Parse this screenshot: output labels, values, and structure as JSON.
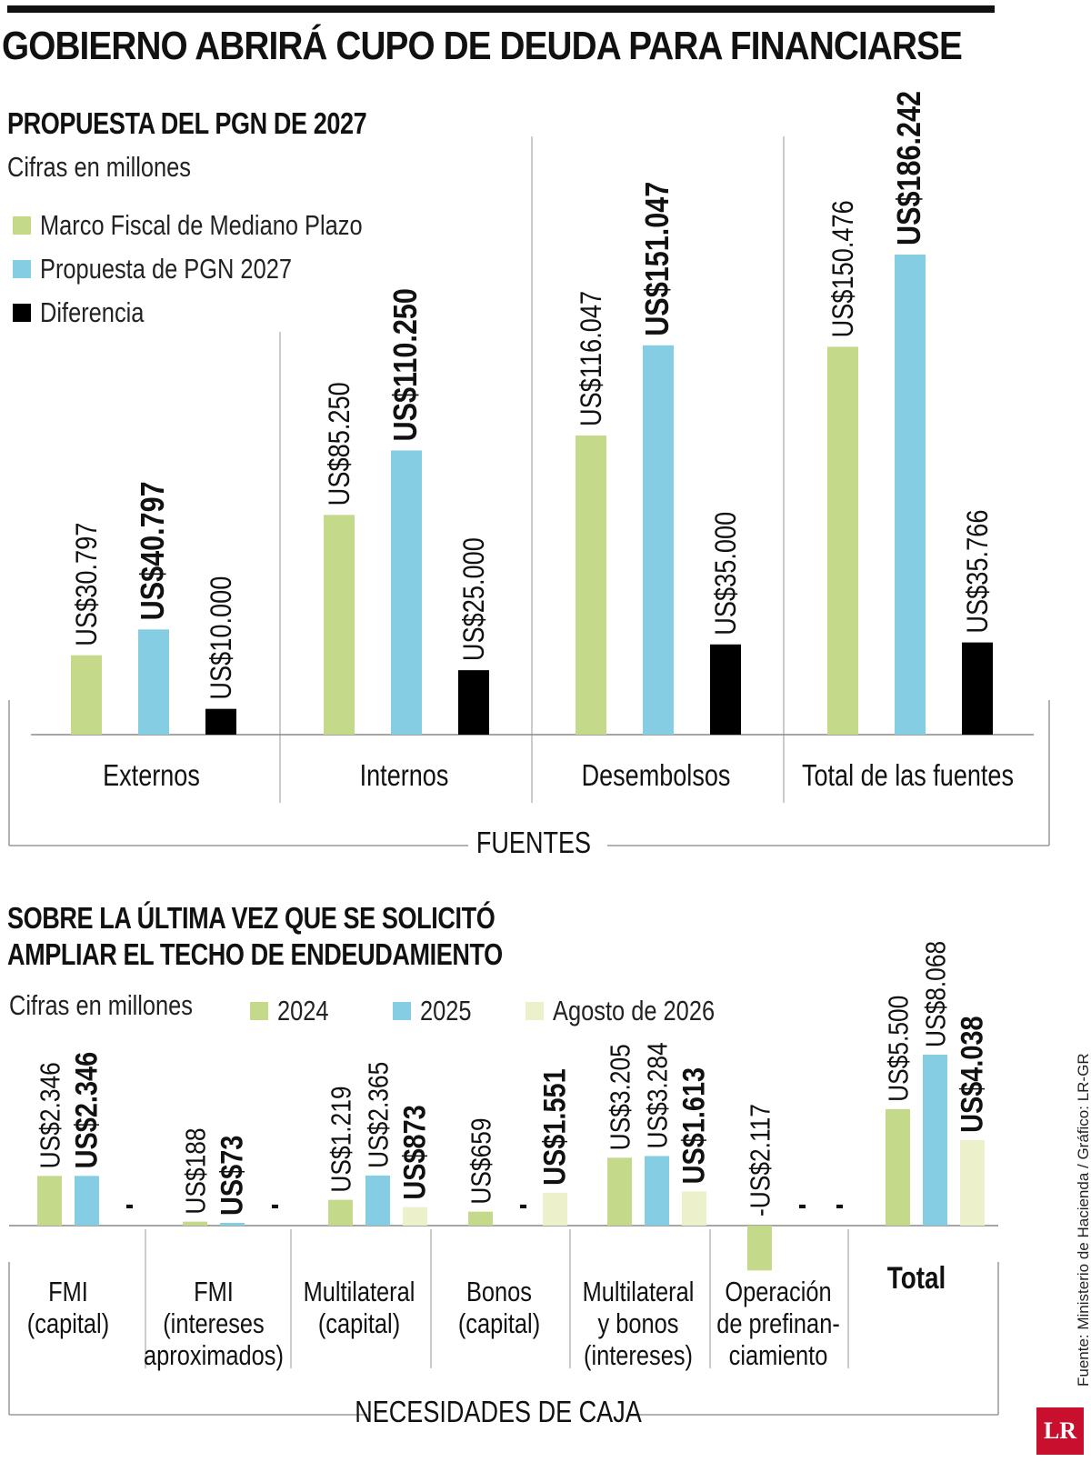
{
  "headline": "GOBIERNO ABRIRÁ CUPO DE DEUDA PARA FINANCIARSE",
  "colors": {
    "green": "#c5d98a",
    "blue": "#85cde3",
    "black": "#000000",
    "cream": "#ecf1cc",
    "logo_red": "#c8102e"
  },
  "chart_data": [
    {
      "type": "bar",
      "title": "PROPUESTA DEL PGN DE 2027",
      "subtitle": "Cifras en millones",
      "xlabel": "FUENTES",
      "categories": [
        "Externos",
        "Internos",
        "Desembolsos",
        "Total de las fuentes"
      ],
      "series": [
        {
          "name": "Marco Fiscal de Mediano Plazo",
          "color": "#c5d98a",
          "bold": false,
          "values": [
            30797,
            85250,
            116047,
            150476
          ],
          "labels": [
            "US$30.797",
            "US$85.250",
            "US$116.047",
            "US$150.476"
          ]
        },
        {
          "name": "Propuesta de PGN 2027",
          "color": "#85cde3",
          "bold": true,
          "values": [
            40797,
            110250,
            151047,
            186242
          ],
          "labels": [
            "US$40.797",
            "US$110.250",
            "US$151.047",
            "US$186.242"
          ]
        },
        {
          "name": "Diferencia",
          "color": "#000000",
          "bold": false,
          "values": [
            10000,
            25000,
            35000,
            35766
          ],
          "labels": [
            "US$10.000",
            "US$25.000",
            "US$35.000",
            "US$35.766"
          ]
        }
      ],
      "legend": "top-left"
    },
    {
      "type": "bar",
      "title_lines": [
        "SOBRE LA ÚLTIMA VEZ QUE SE SOLICITÓ",
        "AMPLIAR EL TECHO DE ENDEUDAMIENTO"
      ],
      "subtitle": "Cifras en millones",
      "xlabel": "NECESIDADES DE CAJA",
      "categories": [
        {
          "lines": [
            "FMI",
            "(capital)"
          ],
          "bold": false
        },
        {
          "lines": [
            "FMI",
            "(intereses",
            "aproximados)"
          ],
          "bold": false
        },
        {
          "lines": [
            "Multilateral",
            "(capital)"
          ],
          "bold": false
        },
        {
          "lines": [
            "Bonos",
            "(capital)"
          ],
          "bold": false
        },
        {
          "lines": [
            "Multilateral",
            "y bonos",
            "(intereses)"
          ],
          "bold": false
        },
        {
          "lines": [
            "Operación",
            "de prefinan-",
            "ciamiento"
          ],
          "bold": false
        },
        {
          "lines": [
            "Total"
          ],
          "bold": true
        }
      ],
      "series": [
        {
          "name": "2024",
          "color": "#c5d98a",
          "bold": false,
          "values": [
            2346,
            188,
            1219,
            659,
            3205,
            -2117,
            5500
          ],
          "labels": [
            "US$2.346",
            "US$188",
            "US$1.219",
            "US$659",
            "US$3.205",
            "-US$2.117",
            "US$5.500"
          ]
        },
        {
          "name": "2025",
          "color": "#85cde3",
          "bold": [
            true,
            true,
            false,
            false,
            false,
            false,
            false
          ],
          "values": [
            2346,
            73,
            2365,
            null,
            3284,
            null,
            8068
          ],
          "labels": [
            "US$2.346",
            "US$73",
            "US$2.365",
            "-",
            "US$3.284",
            "-",
            "US$8.068"
          ]
        },
        {
          "name": "Agosto de 2026",
          "color": "#ecf1cc",
          "bold": true,
          "values": [
            null,
            null,
            873,
            1551,
            1613,
            null,
            4038
          ],
          "labels": [
            "-",
            "-",
            "US$873",
            "US$1.551",
            "US$1.613",
            "-",
            "US$4.038"
          ]
        }
      ],
      "legend": "top"
    }
  ],
  "source": "Fuente: Ministerio de Hacienda / Gráfico: LR-GR",
  "logo_text": "LR"
}
